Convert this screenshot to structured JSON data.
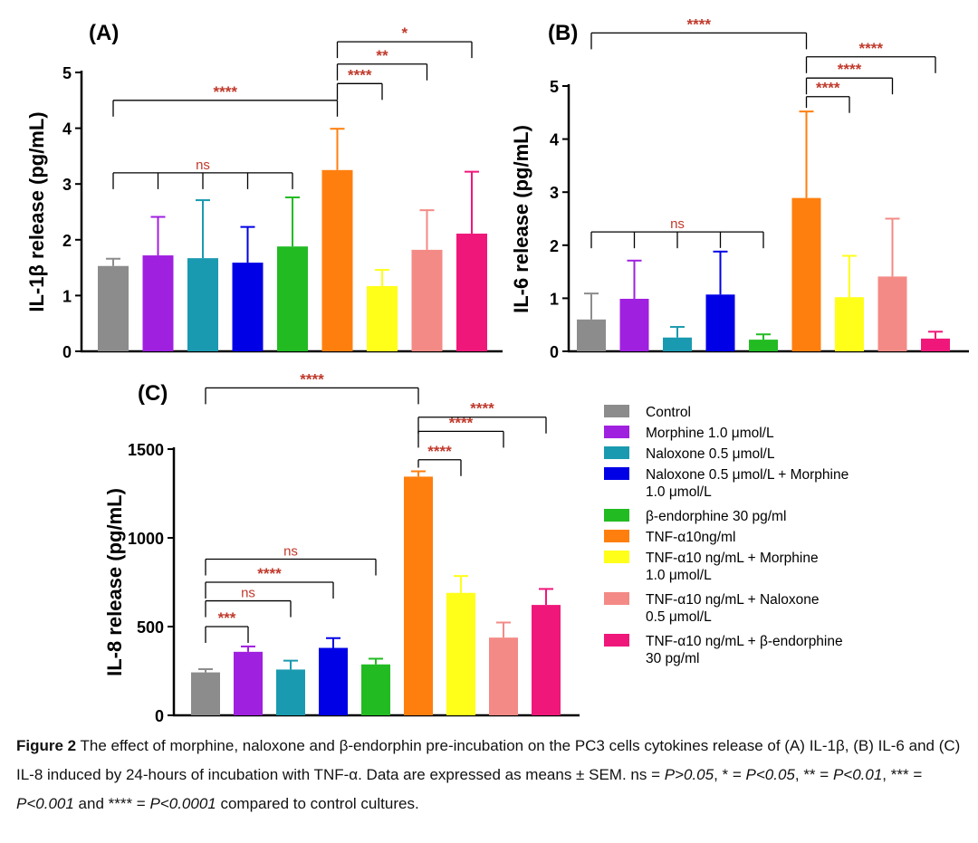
{
  "colors": {
    "sig": "#c0392b",
    "axis": "#000000",
    "series": [
      "#8c8c8c",
      "#a020e0",
      "#1a9ab0",
      "#0000e6",
      "#22bb22",
      "#ff7f0e",
      "#ffff1a",
      "#f48a86",
      "#f0177a"
    ]
  },
  "legend": {
    "items": [
      [
        "Control"
      ],
      [
        "Morphine 1.0 μmol/L"
      ],
      [
        "Naloxone 0.5 μmol/L"
      ],
      [
        "Naloxone 0.5 μmol/L + Morphine",
        "1.0 μmol/L"
      ],
      [
        "β-endorphine 30 pg/ml"
      ],
      [
        "TNF-α10ng/ml"
      ],
      [
        "TNF-α10 ng/mL + Morphine",
        "1.0 μmol/L"
      ],
      [
        "TNF-α10 ng/mL + Naloxone",
        "0.5 μmol/L"
      ],
      [
        "TNF-α10 ng/mL + β-endorphine",
        "30 pg/ml"
      ]
    ]
  },
  "chart_data": [
    {
      "type": "bar",
      "panel": "(A)",
      "ylabel": "IL-1β release (pg/mL)",
      "ylim": [
        0,
        5
      ],
      "yticks": [
        0,
        1,
        2,
        3,
        4,
        5
      ],
      "values": [
        1.53,
        1.72,
        1.67,
        1.59,
        1.88,
        3.25,
        1.17,
        1.82,
        2.11
      ],
      "errors": [
        0.13,
        0.69,
        1.04,
        0.64,
        0.88,
        0.74,
        0.29,
        0.71,
        1.11
      ],
      "brackets": [
        {
          "label": "ns",
          "from": 0,
          "to": [
            1,
            2,
            3,
            4
          ],
          "level": 3.2,
          "ns": true
        },
        {
          "label": "****",
          "from": 0,
          "to": [
            5
          ],
          "level": 4.5,
          "ns": false
        },
        {
          "label": "****",
          "from": 5,
          "to": [
            6
          ],
          "level": 4.8,
          "ns": false
        },
        {
          "label": "**",
          "from": 5,
          "to": [
            7
          ],
          "level": 5.15,
          "ns": false
        },
        {
          "label": "*",
          "from": 5,
          "to": [
            8
          ],
          "level": 5.55,
          "ns": false
        }
      ]
    },
    {
      "type": "bar",
      "panel": "(B)",
      "ylabel": "IL-6 release (pg/mL)",
      "ylim": [
        0,
        5
      ],
      "yticks": [
        0,
        1,
        2,
        3,
        4,
        5
      ],
      "values": [
        0.6,
        0.99,
        0.26,
        1.07,
        0.22,
        2.89,
        1.02,
        1.41,
        0.24
      ],
      "errors": [
        0.49,
        0.72,
        0.2,
        0.81,
        0.1,
        1.63,
        0.78,
        1.09,
        0.13
      ],
      "brackets": [
        {
          "label": "ns",
          "from": 0,
          "to": [
            1,
            2,
            3,
            4
          ],
          "level": 2.25,
          "ns": true
        },
        {
          "label": "****",
          "from": 0,
          "to": [
            5
          ],
          "level": 6.0,
          "ns": false
        },
        {
          "label": "****",
          "from": 5,
          "to": [
            6
          ],
          "level": 4.8,
          "ns": false
        },
        {
          "label": "****",
          "from": 5,
          "to": [
            7
          ],
          "level": 5.15,
          "ns": false
        },
        {
          "label": "****",
          "from": 5,
          "to": [
            8
          ],
          "level": 5.55,
          "ns": false
        }
      ]
    },
    {
      "type": "bar",
      "panel": "(C)",
      "ylabel": "IL-8 release (pg/mL)",
      "ylim": [
        0,
        1500
      ],
      "yticks": [
        0,
        500,
        1000,
        1500
      ],
      "values": [
        242,
        358,
        258,
        380,
        287,
        1345,
        690,
        438,
        622
      ],
      "errors": [
        18,
        30,
        50,
        55,
        32,
        30,
        95,
        85,
        90
      ],
      "brackets": [
        {
          "label": "***",
          "from": 0,
          "to": [
            1
          ],
          "level": 500,
          "ns": false
        },
        {
          "label": "ns",
          "from": 0,
          "to": [
            2
          ],
          "level": 645,
          "ns": true
        },
        {
          "label": "****",
          "from": 0,
          "to": [
            3
          ],
          "level": 750,
          "ns": false
        },
        {
          "label": "ns",
          "from": 0,
          "to": [
            4
          ],
          "level": 880,
          "ns": true
        },
        {
          "label": "****",
          "from": 0,
          "to": [
            5
          ],
          "level": 1845,
          "ns": false
        },
        {
          "label": "****",
          "from": 5,
          "to": [
            6
          ],
          "level": 1440,
          "ns": false
        },
        {
          "label": "****",
          "from": 5,
          "to": [
            7
          ],
          "level": 1600,
          "ns": false
        },
        {
          "label": "****",
          "from": 5,
          "to": [
            8
          ],
          "level": 1680,
          "ns": false
        }
      ]
    }
  ],
  "caption": {
    "label": "Figure 2",
    "t1": " The effect of morphine, naloxone and β-endorphin pre-incubation on the PC3 cells cytokines release of (A) IL-1β, (B) IL-6 and (C) IL-8 induced by 24-hours of incubation with TNF-α. Data are expressed as means ± SEM. ns = ",
    "p1": "P>0.05",
    "t2": ", * = ",
    "p2": "P<0.05",
    "t3": ", ** = ",
    "p3": "P<0.01",
    "t4": ", *** = ",
    "p4": "P<0.001",
    "t5": " and **** = ",
    "p5": "P<0.0001",
    "t6": " compared to control cultures."
  }
}
